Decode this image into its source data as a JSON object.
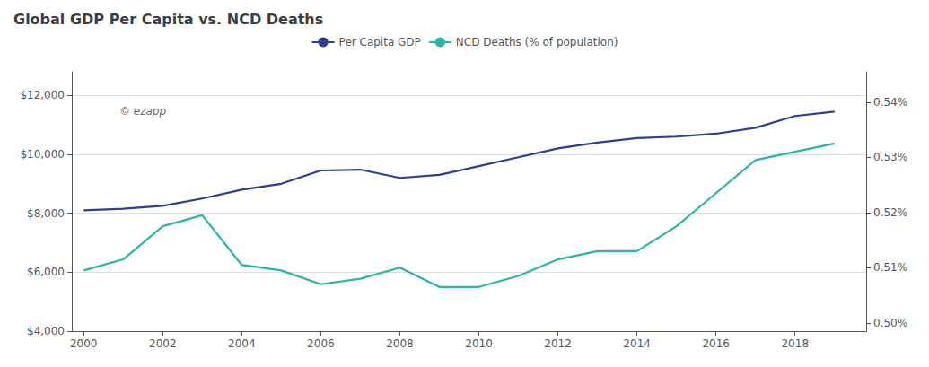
{
  "chart_data": {
    "type": "line",
    "title": "Global GDP Per Capita vs. NCD Deaths",
    "x": [
      2000,
      2001,
      2002,
      2003,
      2004,
      2005,
      2006,
      2007,
      2008,
      2009,
      2010,
      2011,
      2012,
      2013,
      2014,
      2015,
      2016,
      2017,
      2018,
      2019
    ],
    "series": [
      {
        "name": "Per Capita GDP",
        "color": "#2e3f8f",
        "values": [
          8100,
          8150,
          8250,
          8500,
          8800,
          9000,
          9450,
          9480,
          9200,
          9300,
          9600,
          9900,
          10200,
          10400,
          10550,
          10600,
          10700,
          10900,
          11300,
          11450
        ]
      },
      {
        "name": "NCD Deaths (% of population)",
        "color": "#2ab5a5",
        "axis": "y2",
        "values": [
          0.5095,
          0.5115,
          0.5175,
          0.5195,
          0.5105,
          0.5095,
          0.507,
          0.508,
          0.51,
          0.5065,
          0.5065,
          0.5085,
          0.5115,
          0.513,
          0.513,
          0.5175,
          0.5235,
          0.5295,
          0.531,
          0.5325
        ]
      }
    ],
    "xlim": [
      1999.7,
      2019.8
    ],
    "xticks": [
      2000,
      2002,
      2004,
      2006,
      2008,
      2010,
      2012,
      2014,
      2016,
      2018
    ],
    "ylim": [
      4000,
      12800
    ],
    "yticks": [
      {
        "value": 4000,
        "label": "$4,000"
      },
      {
        "value": 6000,
        "label": "$6,000"
      },
      {
        "value": 8000,
        "label": "$8,000"
      },
      {
        "value": 10000,
        "label": "$10,000"
      },
      {
        "value": 12000,
        "label": "$12,000"
      }
    ],
    "y2lim": [
      0.4985,
      0.5455
    ],
    "y2ticks": [
      {
        "value": 0.5,
        "label": "0.50%"
      },
      {
        "value": 0.51,
        "label": "0.51%"
      },
      {
        "value": 0.52,
        "label": "0.52%"
      },
      {
        "value": 0.53,
        "label": "0.53%"
      },
      {
        "value": 0.54,
        "label": "0.54%"
      }
    ],
    "grid": true,
    "legend": "top",
    "annotations": [
      "© ezapp"
    ]
  }
}
